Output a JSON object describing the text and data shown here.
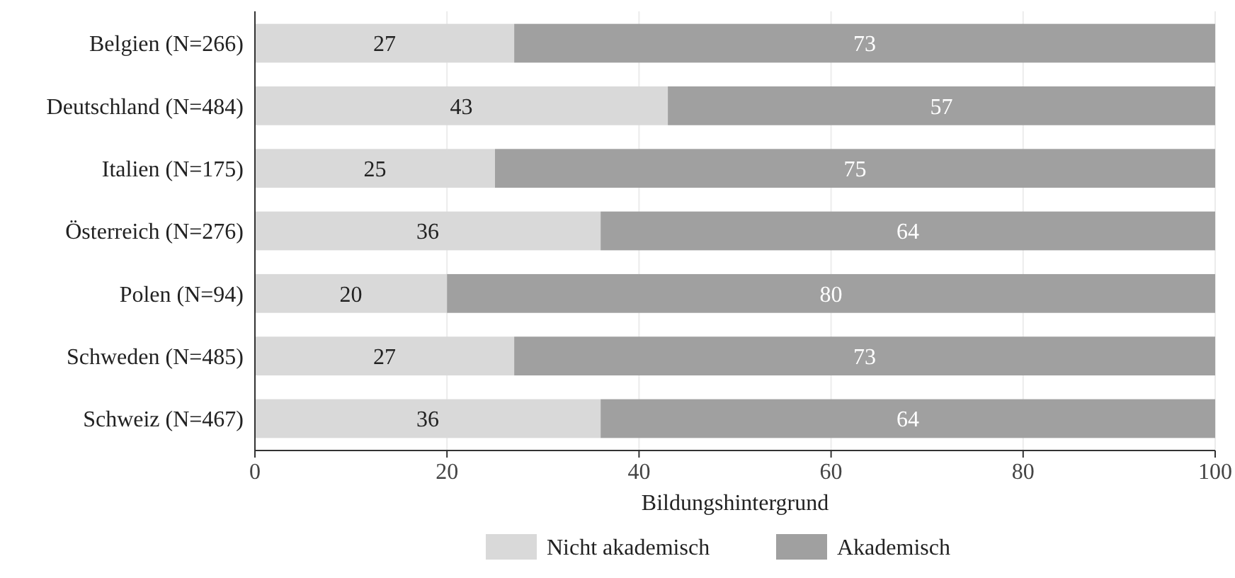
{
  "chart_data": {
    "type": "bar",
    "orientation": "horizontal",
    "stacked": true,
    "xlabel": "Bildungshintergrund",
    "categories": [
      "Belgien (N=266)",
      "Deutschland (N=484)",
      "Italien (N=175)",
      "Österreich (N=276)",
      "Polen (N=94)",
      "Schweden (N=485)",
      "Schweiz (N=467)"
    ],
    "series": [
      {
        "name": "Nicht akademisch",
        "color": "#d9d9d9",
        "values": [
          27,
          43,
          25,
          36,
          20,
          27,
          36
        ]
      },
      {
        "name": "Akademisch",
        "color": "#a0a0a0",
        "values": [
          73,
          57,
          75,
          64,
          80,
          73,
          64
        ]
      }
    ],
    "xlim": [
      0,
      100
    ],
    "xticks": [
      0,
      20,
      40,
      60,
      80,
      100
    ],
    "grid": "x",
    "legend": "bottom",
    "data_labels": true
  }
}
